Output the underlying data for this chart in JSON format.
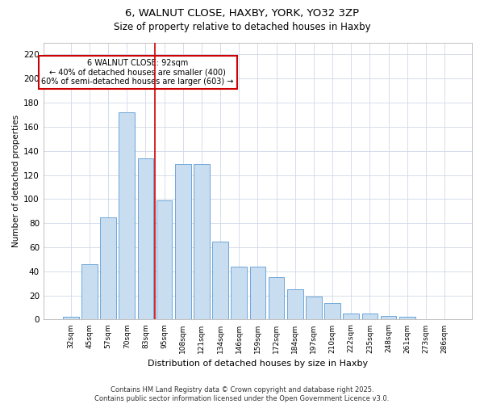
{
  "title_line1": "6, WALNUT CLOSE, HAXBY, YORK, YO32 3ZP",
  "title_line2": "Size of property relative to detached houses in Haxby",
  "xlabel": "Distribution of detached houses by size in Haxby",
  "ylabel": "Number of detached properties",
  "categories": [
    "32sqm",
    "45sqm",
    "57sqm",
    "70sqm",
    "83sqm",
    "95sqm",
    "108sqm",
    "121sqm",
    "134sqm",
    "146sqm",
    "159sqm",
    "172sqm",
    "184sqm",
    "197sqm",
    "210sqm",
    "222sqm",
    "235sqm",
    "248sqm",
    "261sqm",
    "273sqm",
    "286sqm"
  ],
  "bar_values": [
    2,
    46,
    85,
    172,
    134,
    99,
    129,
    129,
    65,
    44,
    44,
    35,
    25,
    19,
    14,
    5,
    5,
    3,
    2,
    0,
    0
  ],
  "bar_color": "#c9ddf0",
  "bar_edge_color": "#5b9bd5",
  "annotation_title": "6 WALNUT CLOSE: 92sqm",
  "annotation_line2": "← 40% of detached houses are smaller (400)",
  "annotation_line3": "60% of semi-detached houses are larger (603) →",
  "annotation_box_color": "#ffffff",
  "annotation_box_edge": "#cc0000",
  "vline_color": "#cc0000",
  "vline_x": 4.5,
  "ylim": [
    0,
    230
  ],
  "yticks": [
    0,
    20,
    40,
    60,
    80,
    100,
    120,
    140,
    160,
    180,
    200,
    220
  ],
  "footer_line1": "Contains HM Land Registry data © Crown copyright and database right 2025.",
  "footer_line2": "Contains public sector information licensed under the Open Government Licence v3.0.",
  "bg_color": "#ffffff",
  "grid_color": "#d0d8e8"
}
